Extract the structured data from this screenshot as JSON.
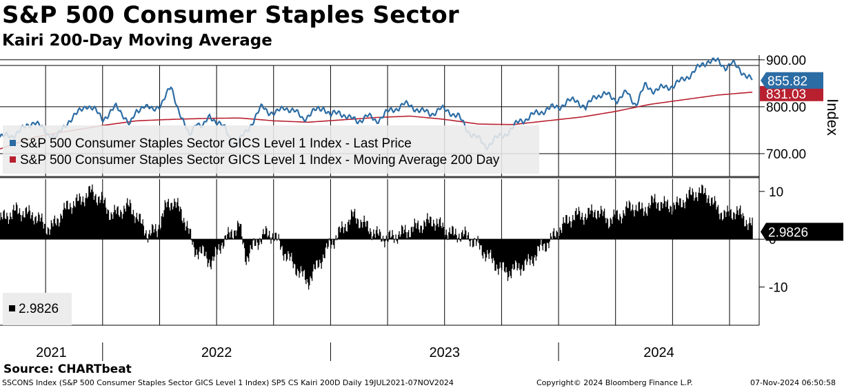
{
  "header": {
    "title": "S&P 500 Consumer Staples Sector",
    "subtitle": "Kairi 200-Day Moving Average"
  },
  "colors": {
    "price": "#2c6ca4",
    "ma": "#b8202f",
    "kairi": "#000000",
    "grid": "#000000"
  },
  "chart_data": [
    {
      "type": "line",
      "title": "S&P 500 Consumer Staples Sector",
      "ylabel": "Index",
      "ylim": [
        650,
        910
      ],
      "yticks": [
        700,
        800,
        900
      ],
      "ytick_labels": [
        "700.00",
        "800.00",
        "900.00"
      ],
      "x_range": [
        "2021-07-19",
        "2024-11-07"
      ],
      "xtick_labels": [
        "2021",
        "2022",
        "2023",
        "2024"
      ],
      "legend": [
        "S&P 500 Consumer Staples Sector GICS Level 1 Index - Last Price",
        "S&P 500 Consumer Staples Sector GICS Level 1 Index - Moving Average 200 Day"
      ],
      "last_price_label": "855.82",
      "ma_label": "831.03",
      "series": [
        {
          "name": "Last Price",
          "x": [
            2021.55,
            2021.6,
            2021.65,
            2021.7,
            2021.75,
            2021.8,
            2021.85,
            2021.89,
            2021.93,
            2021.97,
            2022.0,
            2022.03,
            2022.06,
            2022.09,
            2022.12,
            2022.15,
            2022.18,
            2022.22,
            2022.26,
            2022.3,
            2022.33,
            2022.36,
            2022.38,
            2022.41,
            2022.44,
            2022.47,
            2022.5,
            2022.54,
            2022.58,
            2022.62,
            2022.66,
            2022.7,
            2022.73,
            2022.76,
            2022.8,
            2022.84,
            2022.88,
            2022.93,
            2022.97,
            2023.0,
            2023.04,
            2023.08,
            2023.12,
            2023.16,
            2023.2,
            2023.24,
            2023.28,
            2023.32,
            2023.36,
            2023.4,
            2023.44,
            2023.48,
            2023.52,
            2023.56,
            2023.6,
            2023.64,
            2023.68,
            2023.72,
            2023.76,
            2023.8,
            2023.83,
            2023.86,
            2023.9,
            2023.95,
            2024.0,
            2024.04,
            2024.08,
            2024.12,
            2024.16,
            2024.21,
            2024.26,
            2024.3,
            2024.34,
            2024.38,
            2024.42,
            2024.46,
            2024.5,
            2024.54,
            2024.58,
            2024.62,
            2024.66,
            2024.7,
            2024.73,
            2024.76,
            2024.79,
            2024.82,
            2024.85
          ],
          "values": [
            735,
            738,
            752,
            770,
            745,
            735,
            770,
            785,
            805,
            790,
            775,
            785,
            800,
            785,
            760,
            790,
            805,
            790,
            810,
            840,
            800,
            760,
            735,
            770,
            755,
            780,
            770,
            750,
            715,
            740,
            770,
            800,
            790,
            785,
            800,
            790,
            775,
            790,
            800,
            780,
            790,
            775,
            770,
            780,
            770,
            785,
            795,
            805,
            800,
            790,
            785,
            795,
            790,
            780,
            750,
            735,
            715,
            730,
            740,
            755,
            770,
            775,
            785,
            795,
            800,
            810,
            815,
            795,
            825,
            825,
            815,
            830,
            805,
            845,
            835,
            840,
            845,
            855,
            870,
            885,
            900,
            895,
            885,
            893,
            880,
            870,
            856
          ]
        },
        {
          "name": "Moving Average 200 Day",
          "x": [
            2021.55,
            2021.7,
            2021.85,
            2022.0,
            2022.15,
            2022.3,
            2022.45,
            2022.6,
            2022.75,
            2022.9,
            2023.05,
            2023.2,
            2023.35,
            2023.5,
            2023.65,
            2023.8,
            2023.95,
            2024.1,
            2024.25,
            2024.4,
            2024.55,
            2024.7,
            2024.85
          ],
          "values": [
            710,
            735,
            748,
            760,
            770,
            773,
            775,
            776,
            770,
            767,
            772,
            777,
            780,
            773,
            763,
            762,
            770,
            778,
            790,
            805,
            815,
            825,
            831
          ]
        }
      ]
    },
    {
      "type": "area",
      "title": "Kairi 200-Day Moving Average",
      "ylim": [
        -18,
        13
      ],
      "yticks": [
        -10,
        0,
        10
      ],
      "ytick_labels": [
        "-10",
        "0",
        "10"
      ],
      "legend": [
        "2.9826"
      ],
      "last_value_label": "2.9826",
      "series": [
        {
          "name": "Kairi 200D",
          "x": [
            2021.55,
            2021.62,
            2021.7,
            2021.77,
            2021.8,
            2021.85,
            2021.9,
            2021.95,
            2022.0,
            2022.04,
            2022.08,
            2022.12,
            2022.16,
            2022.2,
            2022.24,
            2022.28,
            2022.31,
            2022.34,
            2022.37,
            2022.4,
            2022.44,
            2022.48,
            2022.52,
            2022.56,
            2022.6,
            2022.63,
            2022.67,
            2022.71,
            2022.75,
            2022.8,
            2022.85,
            2022.9,
            2022.95,
            2023.0,
            2023.05,
            2023.1,
            2023.15,
            2023.2,
            2023.25,
            2023.3,
            2023.35,
            2023.4,
            2023.45,
            2023.5,
            2023.54,
            2023.58,
            2023.62,
            2023.66,
            2023.7,
            2023.74,
            2023.78,
            2023.82,
            2023.87,
            2023.92,
            2023.97,
            2024.02,
            2024.07,
            2024.12,
            2024.17,
            2024.22,
            2024.27,
            2024.32,
            2024.37,
            2024.42,
            2024.47,
            2024.52,
            2024.57,
            2024.62,
            2024.66,
            2024.7,
            2024.74,
            2024.78,
            2024.82,
            2024.85
          ],
          "values": [
            4,
            6,
            5,
            2,
            4,
            7,
            8,
            10,
            8,
            5,
            6,
            7,
            4,
            1,
            2,
            7,
            8,
            6,
            3,
            -2,
            -3,
            -5,
            -1,
            1,
            3,
            -4,
            -1,
            1,
            1,
            -3,
            -6,
            -9,
            -5,
            -1,
            2,
            5,
            3,
            1,
            0,
            1,
            2,
            3,
            4,
            2,
            1,
            1,
            0,
            -2,
            -4,
            -6,
            -7,
            -6,
            -5,
            -2,
            0,
            3,
            5,
            5,
            6,
            4,
            5,
            7,
            6,
            8,
            7,
            7,
            9,
            10,
            9,
            6,
            5,
            6,
            4,
            3
          ]
        }
      ]
    }
  ],
  "source": "Source: CHARTbeat",
  "footer": {
    "left": "SSCONS Index (S&P 500 Consumer Staples Sector GICS Level 1 Index) SP5 CS Kairi 200D  Daily 19JUL2021-07NOV2024",
    "center": "Copyright© 2024 Bloomberg Finance L.P.",
    "right": "07-Nov-2024 06:50:58"
  }
}
